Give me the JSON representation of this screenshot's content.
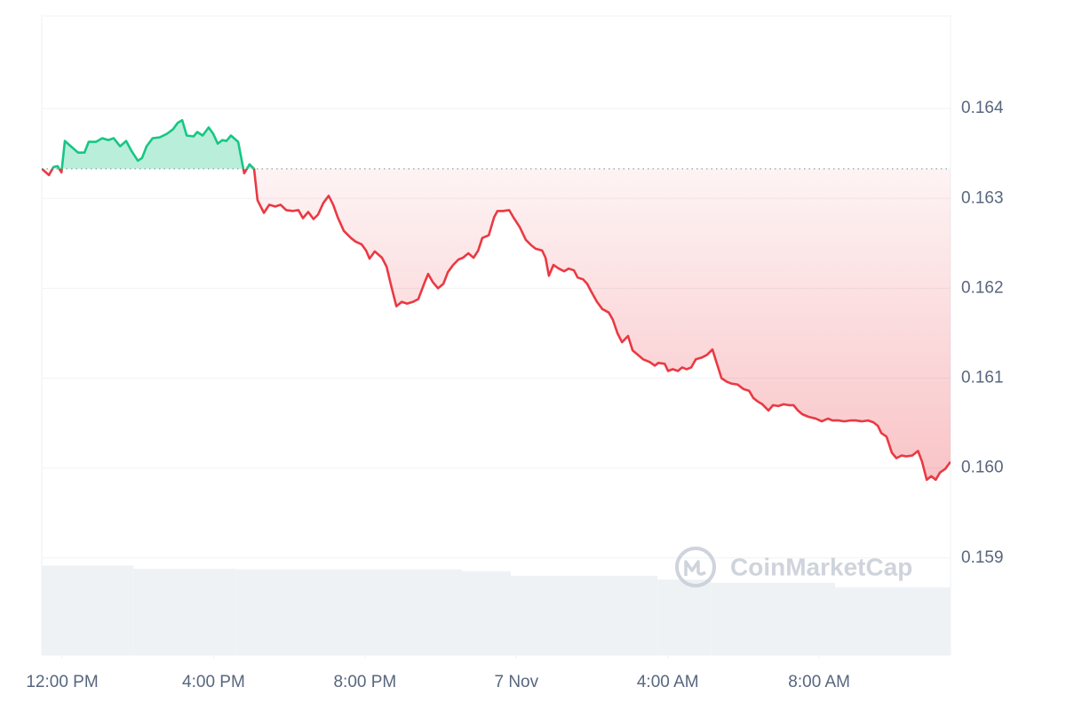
{
  "chart_data": {
    "type": "baseline-line",
    "x": [
      -0.54,
      -0.35,
      -0.23,
      -0.12,
      -0.02,
      0.07,
      0.23,
      0.42,
      0.59,
      0.7,
      0.89,
      1.06,
      1.22,
      1.36,
      1.53,
      1.69,
      1.83,
      2.0,
      2.11,
      2.23,
      2.39,
      2.58,
      2.77,
      2.93,
      3.05,
      3.17,
      3.29,
      3.47,
      3.57,
      3.71,
      3.87,
      3.99,
      4.11,
      4.23,
      4.34,
      4.46,
      4.65,
      4.81,
      4.95,
      5.07,
      5.16,
      5.33,
      5.47,
      5.63,
      5.77,
      5.92,
      6.1,
      6.24,
      6.36,
      6.5,
      6.64,
      6.76,
      6.9,
      7.04,
      7.16,
      7.28,
      7.44,
      7.63,
      7.75,
      7.91,
      8.03,
      8.12,
      8.26,
      8.45,
      8.57,
      8.69,
      8.83,
      8.97,
      9.11,
      9.27,
      9.41,
      9.58,
      9.67,
      9.79,
      9.93,
      10.07,
      10.19,
      10.33,
      10.47,
      10.59,
      10.73,
      10.87,
      10.99,
      11.1,
      11.27,
      11.41,
      11.5,
      11.64,
      11.81,
      11.92,
      12.09,
      12.25,
      12.39,
      12.51,
      12.68,
      12.77,
      12.86,
      12.98,
      13.12,
      13.26,
      13.38,
      13.52,
      13.62,
      13.76,
      13.87,
      13.97,
      14.13,
      14.27,
      14.44,
      14.55,
      14.67,
      14.79,
      14.95,
      15.07,
      15.21,
      15.35,
      15.52,
      15.66,
      15.75,
      15.92,
      16.01,
      16.13,
      16.27,
      16.38,
      16.5,
      16.62,
      16.74,
      16.9,
      17.04,
      17.18,
      17.3,
      17.42,
      17.56,
      17.68,
      17.84,
      18.0,
      18.15,
      18.26,
      18.38,
      18.5,
      18.66,
      18.78,
      18.92,
      19.06,
      19.2,
      19.32,
      19.44,
      19.55,
      19.72,
      19.91,
      20.07,
      20.23,
      20.35,
      20.52,
      20.66,
      20.82,
      20.96,
      21.13,
      21.29,
      21.43,
      21.55,
      21.64,
      21.78,
      21.92,
      22.04,
      22.18,
      22.3,
      22.46,
      22.61,
      22.72,
      22.84,
      22.96,
      23.08,
      23.19,
      23.33,
      23.47
    ],
    "values": [
      0.16333,
      0.16326,
      0.16335,
      0.16336,
      0.16329,
      0.16364,
      0.16358,
      0.16351,
      0.16351,
      0.16363,
      0.16363,
      0.16367,
      0.16365,
      0.16367,
      0.16358,
      0.16364,
      0.16353,
      0.16342,
      0.16345,
      0.16358,
      0.16367,
      0.16368,
      0.16372,
      0.16377,
      0.16384,
      0.16387,
      0.1637,
      0.16369,
      0.16374,
      0.1637,
      0.16379,
      0.16372,
      0.16361,
      0.16365,
      0.16364,
      0.1637,
      0.16363,
      0.16328,
      0.16338,
      0.16333,
      0.16298,
      0.16284,
      0.16293,
      0.16291,
      0.16293,
      0.16287,
      0.16286,
      0.16287,
      0.16278,
      0.16285,
      0.16277,
      0.16282,
      0.16295,
      0.16303,
      0.16293,
      0.16279,
      0.16264,
      0.16256,
      0.16252,
      0.16249,
      0.16242,
      0.16233,
      0.16241,
      0.16234,
      0.16224,
      0.16203,
      0.1618,
      0.16185,
      0.16183,
      0.16185,
      0.16188,
      0.16207,
      0.16216,
      0.16207,
      0.162,
      0.16205,
      0.16218,
      0.16226,
      0.16232,
      0.16234,
      0.16239,
      0.16234,
      0.16242,
      0.16256,
      0.16259,
      0.16279,
      0.16286,
      0.16286,
      0.16287,
      0.16279,
      0.16268,
      0.16254,
      0.16248,
      0.16244,
      0.16242,
      0.16234,
      0.16214,
      0.16226,
      0.16222,
      0.16219,
      0.16222,
      0.1622,
      0.16212,
      0.1621,
      0.16205,
      0.16197,
      0.16185,
      0.16177,
      0.16173,
      0.16165,
      0.1615,
      0.1614,
      0.16147,
      0.16131,
      0.16126,
      0.16121,
      0.16118,
      0.16114,
      0.16117,
      0.16116,
      0.16108,
      0.1611,
      0.16108,
      0.16112,
      0.1611,
      0.16112,
      0.16121,
      0.16123,
      0.16126,
      0.16132,
      0.16116,
      0.161,
      0.16096,
      0.16094,
      0.16093,
      0.16088,
      0.16086,
      0.16078,
      0.16074,
      0.16071,
      0.16064,
      0.1607,
      0.16069,
      0.16071,
      0.1607,
      0.1607,
      0.16064,
      0.1606,
      0.16057,
      0.16055,
      0.16052,
      0.16055,
      0.16053,
      0.16053,
      0.16052,
      0.16053,
      0.16053,
      0.16052,
      0.16053,
      0.16051,
      0.16047,
      0.16039,
      0.16035,
      0.16017,
      0.16011,
      0.16014,
      0.16013,
      0.16014,
      0.16019,
      0.16007,
      0.15987,
      0.15991,
      0.15987,
      0.15995,
      0.15999,
      0.16007
    ],
    "baseline": 0.16333,
    "up_color": "#16c784",
    "down_color": "#ea3943",
    "xlim": [
      -0.54,
      23.47
    ],
    "xticks": [
      {
        "value": 0,
        "label": "12:00 PM"
      },
      {
        "value": 4,
        "label": "4:00 PM"
      },
      {
        "value": 8,
        "label": "8:00 PM"
      },
      {
        "value": 12,
        "label": "7 Nov"
      },
      {
        "value": 16,
        "label": "4:00 AM"
      },
      {
        "value": 20,
        "label": "8:00 AM"
      }
    ],
    "ylim": [
      0.15792,
      0.16503
    ],
    "yticks": [
      0.159,
      {
        "value": 0.16,
        "label": "0.160"
      },
      0.161,
      0.162,
      0.163,
      0.164
    ],
    "grid": true,
    "volume": {
      "bins": [
        -0.54,
        1.88,
        4.58,
        10.56,
        11.85,
        15.73,
        17.14,
        20.42,
        23.47
      ],
      "values": [
        14.0,
        13.5,
        13.4,
        13.1,
        12.4,
        11.8,
        11.3,
        10.6
      ],
      "color": "#eff2f5"
    },
    "y2lim": [
      0,
      100
    ],
    "watermark": "CoinMarketCap"
  }
}
